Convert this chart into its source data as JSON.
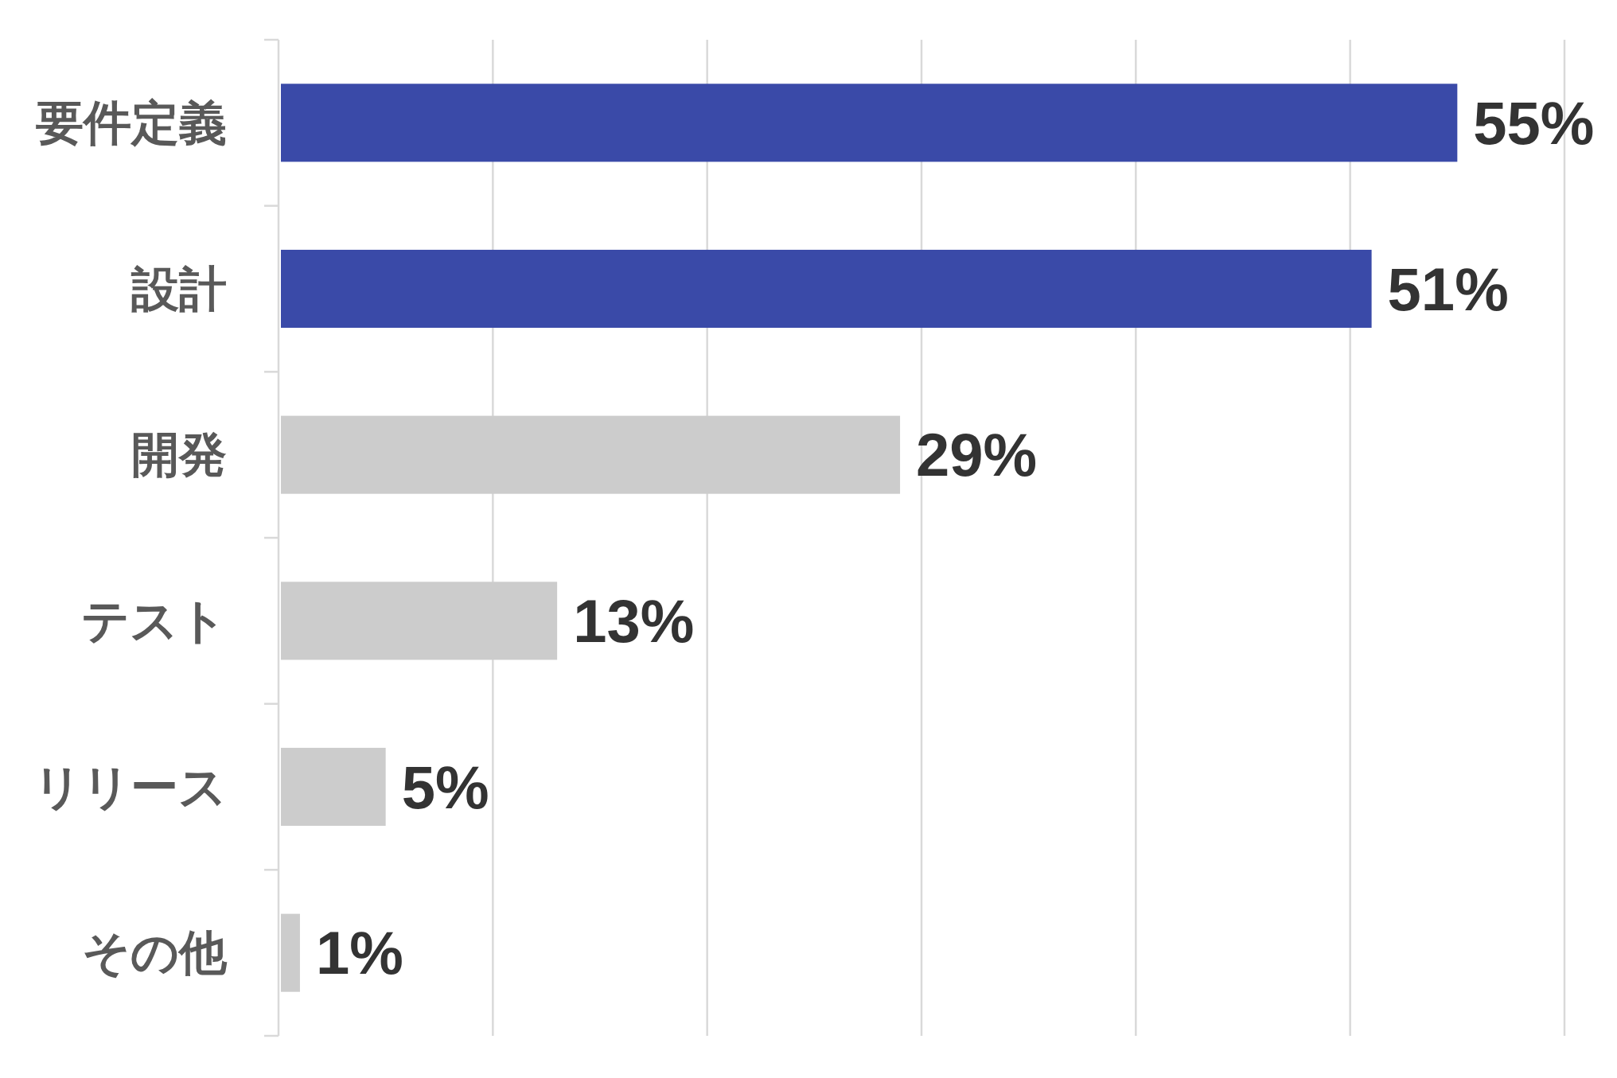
{
  "chart_data": {
    "type": "bar",
    "orientation": "horizontal",
    "categories": [
      "要件定義",
      "設計",
      "開発",
      "テスト",
      "リリース",
      "その他"
    ],
    "values": [
      55,
      51,
      29,
      13,
      5,
      1
    ],
    "value_labels": [
      "55%",
      "51%",
      "29%",
      "13%",
      "5%",
      "1%"
    ],
    "colors": [
      "#3a4aa8",
      "#3a4aa8",
      "#cccccc",
      "#cccccc",
      "#cccccc",
      "#cccccc"
    ],
    "xlim": [
      0,
      60
    ],
    "xticks": [
      {
        "value": 0,
        "label": null
      },
      {
        "value": 10,
        "label": null
      },
      {
        "value": 20,
        "label": null
      },
      {
        "value": 30,
        "label": null
      },
      {
        "value": 40,
        "label": null
      },
      {
        "value": 50,
        "label": null
      },
      {
        "value": 60,
        "label": null
      }
    ],
    "grid": "x",
    "tick_labels": "y"
  }
}
